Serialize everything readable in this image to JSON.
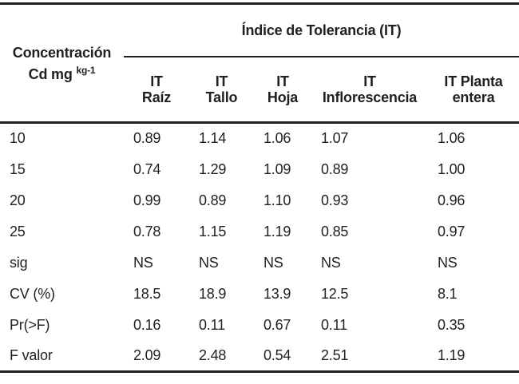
{
  "table": {
    "group_header": "Índice de Tolerancia (IT)",
    "row_header": {
      "line1": "Concentración",
      "line2_main": "Cd mg",
      "line2_sup": "kg-1"
    },
    "columns": [
      {
        "line1": "IT",
        "line2": "Raíz"
      },
      {
        "line1": "IT",
        "line2": "Tallo"
      },
      {
        "line1": "IT",
        "line2": "Hoja"
      },
      {
        "line1": "IT",
        "line2": "Inflorescencia"
      },
      {
        "line1": "IT Planta",
        "line2": "entera"
      }
    ],
    "rows": [
      {
        "label": "10",
        "values": [
          "0.89",
          "1.14",
          "1.06",
          "1.07",
          "1.06"
        ]
      },
      {
        "label": "15",
        "values": [
          "0.74",
          "1.29",
          "1.09",
          "0.89",
          "1.00"
        ]
      },
      {
        "label": "20",
        "values": [
          "0.99",
          "0.89",
          "1.10",
          "0.93",
          "0.96"
        ]
      },
      {
        "label": "25",
        "values": [
          "0.78",
          "1.15",
          "1.19",
          "0.85",
          "0.97"
        ]
      },
      {
        "label": "sig",
        "values": [
          "NS",
          "NS",
          "NS",
          "NS",
          "NS"
        ]
      },
      {
        "label": "CV (%)",
        "values": [
          "18.5",
          "18.9",
          "13.9",
          "12.5",
          "8.1"
        ]
      },
      {
        "label": "Pr(>F)",
        "values": [
          "0.16",
          "0.11",
          "0.67",
          "0.11",
          "0.35"
        ]
      },
      {
        "label": "F valor",
        "values": [
          "2.09",
          "2.48",
          "0.54",
          "2.51",
          "1.19"
        ]
      }
    ],
    "colors": {
      "text": "#231f20",
      "rule": "#231f20",
      "background": "#ffffff"
    }
  },
  "chart_data": {
    "type": "table",
    "title": "Índice de Tolerancia (IT)",
    "row_header": "Concentración Cd mg kg-1",
    "columns": [
      "IT Raíz",
      "IT Tallo",
      "IT Hoja",
      "IT Inflorescencia",
      "IT Planta entera"
    ],
    "rows": [
      [
        "10",
        "0.89",
        "1.14",
        "1.06",
        "1.07",
        "1.06"
      ],
      [
        "15",
        "0.74",
        "1.29",
        "1.09",
        "0.89",
        "1.00"
      ],
      [
        "20",
        "0.99",
        "0.89",
        "1.10",
        "0.93",
        "0.96"
      ],
      [
        "25",
        "0.78",
        "1.15",
        "1.19",
        "0.85",
        "0.97"
      ],
      [
        "sig",
        "NS",
        "NS",
        "NS",
        "NS",
        "NS"
      ],
      [
        "CV (%)",
        "18.5",
        "18.9",
        "13.9",
        "12.5",
        "8.1"
      ],
      [
        "Pr(>F)",
        "0.16",
        "0.11",
        "0.67",
        "0.11",
        "0.35"
      ],
      [
        "F valor",
        "2.09",
        "2.48",
        "0.54",
        "2.51",
        "1.19"
      ]
    ]
  }
}
